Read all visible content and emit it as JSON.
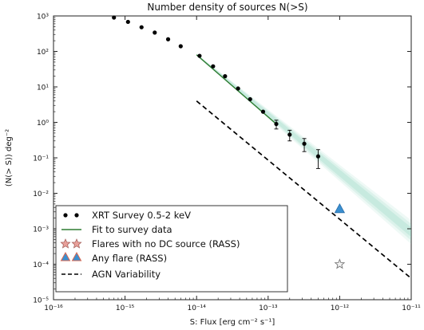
{
  "chart_data": {
    "type": "scatter",
    "title": "Number density of sources N(>S)",
    "xlabel": "S: Flux [erg cm⁻² s⁻¹]",
    "ylabel": "(N(> S)) deg⁻²",
    "x_scale": "log",
    "y_scale": "log",
    "xlim": [
      1e-16,
      1e-11
    ],
    "ylim": [
      1e-05,
      1000
    ],
    "x_ticks": [
      {
        "value": 1e-16,
        "label": "10⁻¹⁶"
      },
      {
        "value": 1e-15,
        "label": "10⁻¹⁵"
      },
      {
        "value": 1e-14,
        "label": "10⁻¹⁴"
      },
      {
        "value": 1e-13,
        "label": "10⁻¹³"
      },
      {
        "value": 1e-12,
        "label": "10⁻¹²"
      },
      {
        "value": 1e-11,
        "label": "10⁻¹¹"
      }
    ],
    "y_ticks": [
      {
        "value": 1000,
        "label": "10³"
      },
      {
        "value": 100,
        "label": "10²"
      },
      {
        "value": 10,
        "label": "10¹"
      },
      {
        "value": 1,
        "label": "10⁰"
      },
      {
        "value": 0.1,
        "label": "10⁻¹"
      },
      {
        "value": 0.01,
        "label": "10⁻²"
      },
      {
        "value": 0.001,
        "label": "10⁻³"
      },
      {
        "value": 0.0001,
        "label": "10⁻⁴"
      },
      {
        "value": 1e-05,
        "label": "10⁻⁵"
      }
    ],
    "grid": false,
    "legend_position": "lower-left",
    "series": [
      {
        "name": "XRT Survey 0.5-2 keV",
        "kind": "points",
        "color": "#000000",
        "x": [
          7e-16,
          1.1e-15,
          1.7e-15,
          2.6e-15,
          4e-15,
          6e-15,
          1.1e-14,
          1.7e-14,
          2.5e-14,
          3.8e-14,
          5.6e-14,
          8.5e-14,
          1.3e-13,
          2e-13,
          3.2e-13,
          5e-13
        ],
        "y": [
          900,
          680,
          480,
          340,
          220,
          140,
          75,
          38,
          20,
          9,
          4.5,
          2,
          0.9,
          0.45,
          0.25,
          0.11
        ],
        "yerr": [
          0,
          0,
          0,
          0,
          0,
          0,
          0,
          0,
          0,
          0,
          0,
          0,
          0.25,
          0.15,
          0.1,
          0.06
        ]
      },
      {
        "name": "Fit to survey data",
        "kind": "line",
        "color": "#2e7d32",
        "x": [
          1e-14,
          1.3e-13
        ],
        "y": [
          80,
          0.9
        ]
      },
      {
        "name": "Flares with no DC source (RASS)",
        "kind": "star",
        "color": "#e8a09a",
        "x": [
          1e-12
        ],
        "y": [
          0.0001
        ]
      },
      {
        "name": "Any flare (RASS)",
        "kind": "triangle",
        "color": "#3a8fd0",
        "x": [
          1e-12
        ],
        "y": [
          0.0035
        ]
      },
      {
        "name": "AGN Variability",
        "kind": "dashed-line",
        "color": "#000000",
        "x": [
          1e-14,
          1e-11
        ],
        "y": [
          4,
          4e-05
        ]
      }
    ],
    "uncertainty_band": {
      "color": "#7ecfb5",
      "x": [
        1e-14,
        1e-11
      ],
      "y": [
        80,
        0.0008
      ]
    }
  }
}
